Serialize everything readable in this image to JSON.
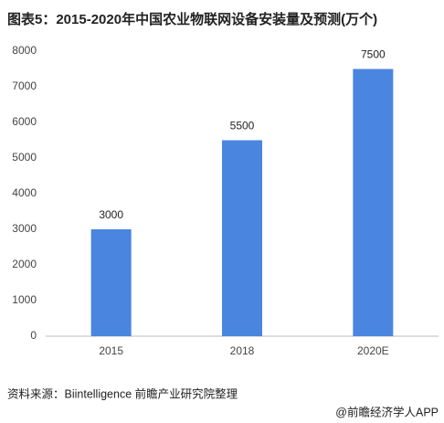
{
  "chart_data": {
    "type": "bar",
    "title": "图表5：2015-2020年中国农业物联网设备安装量及预测(万个)",
    "categories": [
      "2015",
      "2018",
      "2020E"
    ],
    "values": [
      3000,
      5500,
      7500
    ],
    "color": "#4a86e0",
    "ylim": [
      0,
      8000
    ],
    "yticks": [
      0,
      1000,
      2000,
      3000,
      4000,
      5000,
      6000,
      7000,
      8000
    ],
    "grid": false,
    "source": "资料来源：Biintelligence 前瞻产业研究院整理",
    "footer": "@前瞻经济学人APP"
  }
}
